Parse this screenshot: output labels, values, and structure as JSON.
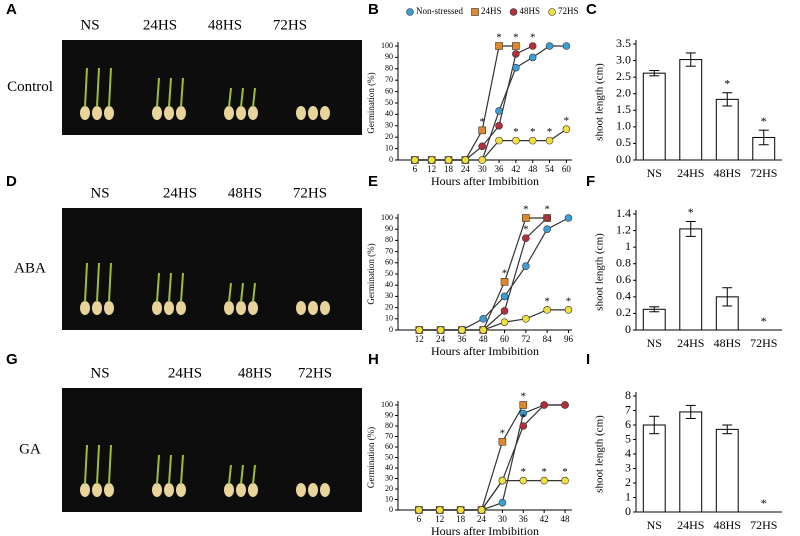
{
  "photos": [
    {
      "letter": "A",
      "row_label": "Control",
      "columns": [
        "NS",
        "24HS",
        "48HS",
        "72HS"
      ]
    },
    {
      "letter": "D",
      "row_label": "ABA",
      "columns": [
        "NS",
        "24HS",
        "48HS",
        "72HS"
      ]
    },
    {
      "letter": "G",
      "row_label": "GA",
      "columns": [
        "NS",
        "24HS",
        "48HS",
        "72HS"
      ]
    }
  ],
  "chart_data": [
    {
      "type": "line",
      "letter": "B",
      "ylabel": "Germination (%)",
      "xlabel": "Hours after Imbibition",
      "x": [
        6,
        12,
        18,
        24,
        30,
        36,
        42,
        48,
        54,
        60
      ],
      "xlim": [
        0,
        62
      ],
      "xticks": [
        6,
        12,
        18,
        24,
        30,
        36,
        42,
        48,
        54,
        60
      ],
      "ylim": [
        0,
        100
      ],
      "yticks": [
        0,
        10,
        20,
        30,
        40,
        50,
        60,
        70,
        80,
        90,
        100
      ],
      "legend": "top",
      "series": [
        {
          "name": "Non-stressed",
          "color": "#3a9fd6",
          "marker": "circle",
          "values": [
            0,
            0,
            0,
            0,
            0,
            43,
            81,
            90,
            100,
            100
          ]
        },
        {
          "name": "24HS",
          "color": "#e0872b",
          "marker": "square",
          "values": [
            0,
            0,
            0,
            0,
            26,
            100,
            100,
            null,
            null,
            null
          ]
        },
        {
          "name": "48HS",
          "color": "#b3303b",
          "marker": "circle",
          "values": [
            0,
            0,
            0,
            0,
            12,
            30,
            93,
            100,
            null,
            null
          ]
        },
        {
          "name": "72HS",
          "color": "#efe03e",
          "marker": "circle",
          "values": [
            0,
            0,
            0,
            0,
            0,
            17,
            17,
            17,
            17,
            27
          ]
        }
      ],
      "annotations": [
        {
          "x": 30,
          "y": 26,
          "text": "*"
        },
        {
          "x": 36,
          "y": 100,
          "text": "*"
        },
        {
          "x": 42,
          "y": 100,
          "text": "*"
        },
        {
          "x": 48,
          "y": 100,
          "text": "*"
        },
        {
          "x": 42,
          "y": 17,
          "text": "*"
        },
        {
          "x": 48,
          "y": 17,
          "text": "*"
        },
        {
          "x": 54,
          "y": 17,
          "text": "*"
        },
        {
          "x": 60,
          "y": 27,
          "text": "*"
        }
      ]
    },
    {
      "type": "bar",
      "letter": "C",
      "ylabel": "shoot length (cm)",
      "categories": [
        "NS",
        "24HS",
        "48HS",
        "72HS"
      ],
      "values": [
        2.62,
        3.03,
        1.83,
        0.68
      ],
      "errors": [
        0.08,
        0.2,
        0.2,
        0.22
      ],
      "ylim": [
        0,
        3.5
      ],
      "yticks": [
        {
          "value": 0,
          "label": "0.0"
        },
        0.5,
        {
          "value": 1,
          "label": "1.0"
        },
        1.5,
        {
          "value": 2,
          "label": "2.0"
        },
        2.5,
        {
          "value": 3,
          "label": "3.0"
        },
        3.5
      ],
      "significant": [
        false,
        false,
        true,
        true
      ],
      "significance_label": "*"
    },
    {
      "type": "line",
      "letter": "E",
      "ylabel": "Germination (%)",
      "xlabel": "Hours after Imbibition",
      "x": [
        12,
        24,
        36,
        48,
        60,
        72,
        84,
        96
      ],
      "xlim": [
        0,
        98
      ],
      "xticks": [
        12,
        24,
        36,
        48,
        60,
        72,
        84,
        96
      ],
      "ylim": [
        0,
        100
      ],
      "yticks": [
        0,
        10,
        20,
        30,
        40,
        50,
        60,
        70,
        80,
        90,
        100
      ],
      "series": [
        {
          "name": "Non-stressed",
          "color": "#3a9fd6",
          "marker": "circle",
          "values": [
            0,
            0,
            0,
            10,
            30,
            57,
            90,
            100
          ]
        },
        {
          "name": "24HS",
          "color": "#e0872b",
          "marker": "square",
          "values": [
            0,
            0,
            0,
            0,
            43,
            100,
            100,
            null
          ]
        },
        {
          "name": "48HS",
          "color": "#b3303b",
          "marker": "circle",
          "values": [
            0,
            0,
            0,
            0,
            17,
            82,
            100,
            null
          ]
        },
        {
          "name": "72HS",
          "color": "#efe03e",
          "marker": "circle",
          "values": [
            0,
            0,
            0,
            0,
            7,
            10,
            18,
            18
          ]
        }
      ],
      "annotations": [
        {
          "x": 60,
          "y": 43,
          "text": "*"
        },
        {
          "x": 72,
          "y": 100,
          "text": "*"
        },
        {
          "x": 84,
          "y": 100,
          "text": "*"
        },
        {
          "x": 72,
          "y": 82,
          "text": "*"
        },
        {
          "x": 84,
          "y": 18,
          "text": "*"
        },
        {
          "x": 96,
          "y": 18,
          "text": "*"
        }
      ]
    },
    {
      "type": "bar",
      "letter": "F",
      "ylabel": "shoot length (cm)",
      "categories": [
        "NS",
        "24HS",
        "48HS",
        "72HS"
      ],
      "values": [
        0.25,
        1.22,
        0.4,
        0
      ],
      "errors": [
        0.03,
        0.09,
        0.11,
        0
      ],
      "ylim": [
        0,
        1.4
      ],
      "yticks": [
        0,
        0.2,
        0.4,
        0.6,
        0.8,
        1,
        1.2,
        1.4
      ],
      "significant": [
        false,
        true,
        false,
        true
      ],
      "significance_label": "*"
    },
    {
      "type": "line",
      "letter": "H",
      "ylabel": "Germination (%)",
      "xlabel": "Hours after Imbibition",
      "x": [
        6,
        12,
        18,
        24,
        30,
        36,
        42,
        48
      ],
      "xlim": [
        0,
        50
      ],
      "xticks": [
        6,
        12,
        18,
        24,
        30,
        36,
        42,
        48
      ],
      "ylim": [
        0,
        100
      ],
      "yticks": [
        0,
        10,
        20,
        30,
        40,
        50,
        60,
        70,
        80,
        90,
        100
      ],
      "series": [
        {
          "name": "Non-stressed",
          "color": "#3a9fd6",
          "marker": "circle",
          "values": [
            0,
            0,
            0,
            0,
            7,
            92,
            100,
            100
          ]
        },
        {
          "name": "24HS",
          "color": "#e0872b",
          "marker": "square",
          "values": [
            0,
            0,
            0,
            0,
            65,
            100,
            null,
            null
          ]
        },
        {
          "name": "48HS",
          "color": "#b3303b",
          "marker": "circle",
          "values": [
            0,
            0,
            0,
            0,
            28,
            80,
            100,
            100
          ]
        },
        {
          "name": "72HS",
          "color": "#efe03e",
          "marker": "circle",
          "values": [
            0,
            0,
            0,
            0,
            28,
            28,
            28,
            28
          ]
        }
      ],
      "annotations": [
        {
          "x": 30,
          "y": 65,
          "text": "*"
        },
        {
          "x": 36,
          "y": 100,
          "text": "*"
        },
        {
          "x": 36,
          "y": 80,
          "text": "*"
        },
        {
          "x": 36,
          "y": 28,
          "text": "*"
        },
        {
          "x": 42,
          "y": 28,
          "text": "*"
        },
        {
          "x": 48,
          "y": 28,
          "text": "*"
        }
      ]
    },
    {
      "type": "bar",
      "letter": "I",
      "ylabel": "shoot length (cm)",
      "categories": [
        "NS",
        "24HS",
        "48HS",
        "72HS"
      ],
      "values": [
        6.0,
        6.9,
        5.7,
        0
      ],
      "errors": [
        0.6,
        0.45,
        0.3,
        0
      ],
      "ylim": [
        0,
        8
      ],
      "yticks": [
        0,
        1,
        2,
        3,
        4,
        5,
        6,
        7,
        8
      ],
      "significant": [
        false,
        false,
        false,
        true
      ],
      "significance_label": "*"
    }
  ]
}
